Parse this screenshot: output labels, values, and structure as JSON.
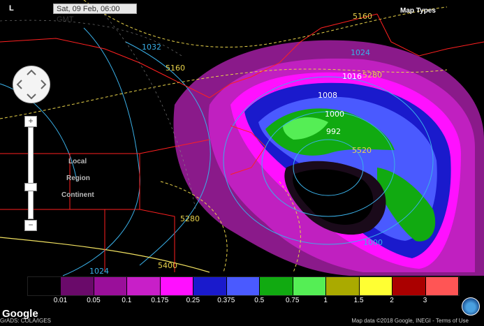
{
  "timestamp": "Sat, 09 Feb, 06:00 GMT",
  "map_types_label": "Map Types",
  "logo_mark": "L",
  "region_labels": {
    "local": "Local",
    "region": "Region",
    "continent": "Continent"
  },
  "zoom": {
    "plus": "+",
    "minus": "−"
  },
  "contour_labels": {
    "thickness": [
      "5160",
      "5160",
      "5280",
      "5280",
      "5400",
      "5520"
    ],
    "pressure": [
      "1032",
      "1024",
      "1016",
      "1008",
      "1000",
      "992",
      "1000",
      "1024"
    ]
  },
  "legend": {
    "colors": [
      "#000000",
      "#6a0a6a",
      "#9a0f9a",
      "#c81fc8",
      "#ff10ff",
      "#1a1acc",
      "#4a5aff",
      "#11aa11",
      "#55ee55",
      "#aaaa00",
      "#ffff33",
      "#aa0000",
      "#ff5555"
    ],
    "ticks": [
      "0.01",
      "0.05",
      "0.1",
      "0.175",
      "0.25",
      "0.375",
      "0.5",
      "0.75",
      "1",
      "1.5",
      "2",
      "3"
    ]
  },
  "footer": {
    "google": "Google",
    "left": "GrADS: COLA/IGES",
    "right": "Map data ©2018 Google, INEGI  -  Terms of Use"
  },
  "icons": [
    "pan-control-icon",
    "noaa-logo-icon"
  ]
}
